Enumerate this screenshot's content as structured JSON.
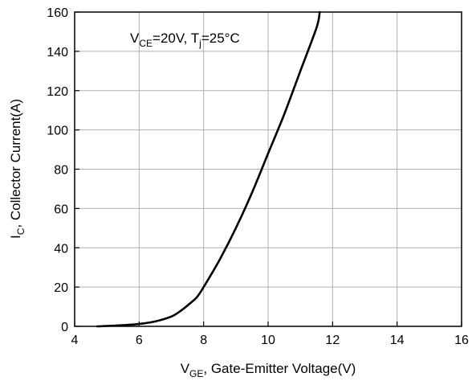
{
  "chart_data": {
    "type": "line",
    "annotation": {
      "v": "V",
      "ce_sub": "CE",
      "ce_value": "=20V, ",
      "t": "T",
      "j_sub": "j",
      "t_value": "=25°C"
    },
    "xlabel": {
      "v": "V",
      "sub": "GE",
      "rest": ", Gate-Emitter Voltage(V)"
    },
    "ylabel": {
      "i": "I",
      "sub": "C",
      "rest": ", Collector Current(A)"
    },
    "xlim": [
      4,
      16
    ],
    "ylim": [
      0,
      160
    ],
    "xticks": [
      "4",
      "6",
      "8",
      "10",
      "12",
      "14",
      "16"
    ],
    "yticks": [
      "0",
      "20",
      "40",
      "60",
      "80",
      "100",
      "120",
      "140",
      "160"
    ],
    "grid": true,
    "series": [
      {
        "color": "#000000",
        "x": [
          4.7,
          5.0,
          5.5,
          6.0,
          6.5,
          7.0,
          7.3,
          7.6,
          7.8,
          8.0,
          8.5,
          9.0,
          9.5,
          10.0,
          10.5,
          11.0,
          11.5,
          11.6
        ],
        "y": [
          0,
          0.2,
          0.6,
          1.2,
          2.5,
          5,
          8,
          12,
          15,
          20,
          34,
          50,
          68,
          88,
          108,
          130,
          152,
          160
        ]
      }
    ]
  }
}
